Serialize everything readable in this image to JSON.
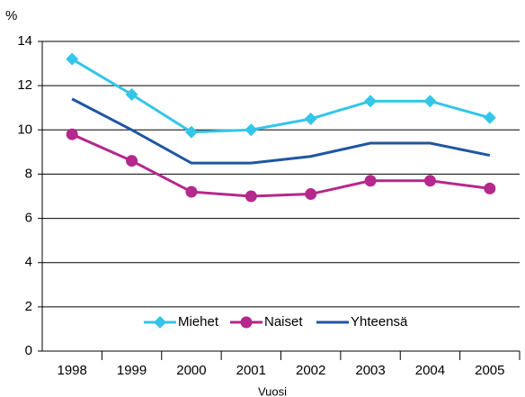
{
  "chart_data": {
    "type": "line",
    "y_label": "%",
    "x_label": "Vuosi",
    "categories": [
      "1998",
      "1999",
      "2000",
      "2001",
      "2002",
      "2003",
      "2004",
      "2005"
    ],
    "series": [
      {
        "name": "Miehet",
        "color": "#33c6e8",
        "marker": "diamond",
        "values": [
          13.2,
          11.6,
          9.9,
          10.0,
          10.5,
          11.3,
          11.3,
          10.55
        ]
      },
      {
        "name": "Naiset",
        "color": "#b5288c",
        "marker": "circle",
        "values": [
          9.8,
          8.6,
          7.2,
          7.0,
          7.1,
          7.7,
          7.7,
          7.35
        ]
      },
      {
        "name": "Yhteensä",
        "color": "#1f56a2",
        "marker": "none",
        "values": [
          11.4,
          10.0,
          8.5,
          8.5,
          8.8,
          9.4,
          9.4,
          8.85
        ]
      }
    ],
    "ylim": [
      0,
      14
    ],
    "yticks": [
      0,
      2,
      4,
      6,
      8,
      10,
      12,
      14
    ],
    "grid": true,
    "legend": "lower center"
  }
}
